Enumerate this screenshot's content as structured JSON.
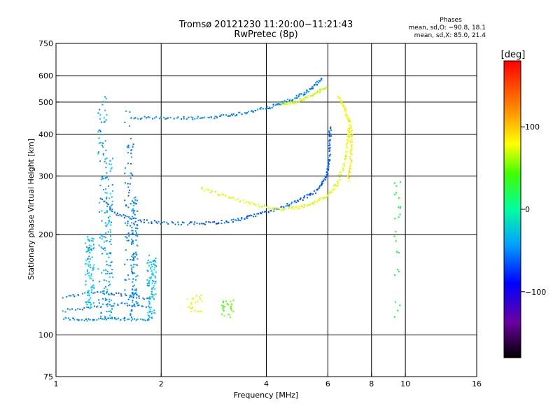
{
  "chart_data": {
    "type": "scatter",
    "title": "Tromsø 20121230 11:20:00−11:21:43",
    "subtitle": "RwPretec (8p)",
    "xlabel": "Frequency [MHz]",
    "ylabel": "Stationary phase Virtual Height [km]",
    "x_scale": "log",
    "y_scale": "log",
    "xlim": [
      1,
      16
    ],
    "ylim": [
      75,
      750
    ],
    "x_ticks": [
      1,
      2,
      4,
      6,
      8,
      10,
      16
    ],
    "x_tick_labels": [
      "1",
      "2",
      "4",
      "6",
      "8",
      "10",
      "16"
    ],
    "y_ticks": [
      75,
      100,
      200,
      300,
      400,
      500,
      600,
      750
    ],
    "y_tick_labels": [
      "75",
      "100",
      "200",
      "300",
      "400",
      "500",
      "600",
      "750"
    ],
    "x_gridlines": [
      2,
      4,
      6,
      8,
      10
    ],
    "y_gridlines": [
      100,
      200,
      300,
      400,
      500,
      600
    ],
    "grid": true,
    "phase_header": "Phases",
    "phase_stats": [
      "mean, sd,O: −90.8, 18.1",
      "mean, sd,X: 85.0, 21.4"
    ],
    "colorbar": {
      "label": "[deg]",
      "range": [
        -180,
        180
      ],
      "ticks": [
        100,
        0,
        -100
      ],
      "tick_labels": [
        "100",
        "0",
        "−100"
      ]
    },
    "traces": [
      {
        "kind": "curve",
        "points": [
          [
            1.05,
            112
          ],
          [
            1.2,
            111
          ],
          [
            1.4,
            112
          ],
          [
            1.6,
            111
          ],
          [
            1.9,
            112
          ]
        ],
        "phase": -95
      },
      {
        "kind": "curve",
        "points": [
          [
            1.05,
            118
          ],
          [
            1.3,
            122
          ],
          [
            1.55,
            124
          ],
          [
            1.85,
            121
          ]
        ],
        "phase": -100
      },
      {
        "kind": "curve",
        "points": [
          [
            1.05,
            130
          ],
          [
            1.3,
            135
          ],
          [
            1.55,
            132
          ],
          [
            1.9,
            128
          ]
        ],
        "phase": -105
      },
      {
        "kind": "vertical_band",
        "x": 1.36,
        "width": 0.03,
        "y_range": [
          112,
          520
        ],
        "phase": -90
      },
      {
        "kind": "vertical_band",
        "x": 1.42,
        "width": 0.025,
        "y_range": [
          112,
          350
        ],
        "phase": -85
      },
      {
        "kind": "vertical_band",
        "x": 1.25,
        "width": 0.03,
        "y_range": [
          120,
          200
        ],
        "phase": -80
      },
      {
        "kind": "vertical_band",
        "x": 1.62,
        "width": 0.03,
        "y_range": [
          112,
          470
        ],
        "phase": -100
      },
      {
        "kind": "vertical_band",
        "x": 1.68,
        "width": 0.02,
        "y_range": [
          120,
          260
        ],
        "phase": -95
      },
      {
        "kind": "vertical_band",
        "x": 1.88,
        "width": 0.03,
        "y_range": [
          112,
          175
        ],
        "phase": -80
      },
      {
        "kind": "curve",
        "points": [
          [
            1.35,
            255
          ],
          [
            1.5,
            230
          ],
          [
            1.7,
            221
          ],
          [
            2.0,
            217
          ],
          [
            2.4,
            216
          ],
          [
            2.8,
            217
          ],
          [
            3.2,
            220
          ],
          [
            3.6,
            226
          ],
          [
            4.0,
            234
          ],
          [
            4.5,
            243
          ],
          [
            5.0,
            254
          ],
          [
            5.5,
            268
          ],
          [
            5.8,
            285
          ],
          [
            6.0,
            310
          ],
          [
            6.05,
            340
          ],
          [
            6.08,
            380
          ],
          [
            6.1,
            420
          ]
        ],
        "phase": -110
      },
      {
        "kind": "curve",
        "points": [
          [
            2.6,
            275
          ],
          [
            3.0,
            262
          ],
          [
            3.5,
            250
          ],
          [
            4.0,
            242
          ],
          [
            4.5,
            238
          ],
          [
            5.0,
            242
          ],
          [
            5.5,
            250
          ],
          [
            6.0,
            262
          ],
          [
            6.4,
            285
          ],
          [
            6.7,
            330
          ],
          [
            6.85,
            380
          ],
          [
            6.9,
            420
          ]
        ],
        "phase": 90
      },
      {
        "kind": "curve",
        "points": [
          [
            1.65,
            450
          ],
          [
            2.0,
            447
          ],
          [
            2.4,
            447
          ],
          [
            2.8,
            450
          ],
          [
            3.2,
            458
          ],
          [
            3.6,
            468
          ],
          [
            4.0,
            480
          ],
          [
            4.4,
            495
          ],
          [
            4.8,
            512
          ],
          [
            5.2,
            535
          ],
          [
            5.5,
            560
          ],
          [
            5.8,
            590
          ]
        ],
        "phase": -100
      },
      {
        "kind": "curve",
        "points": [
          [
            4.4,
            490
          ],
          [
            4.8,
            500
          ],
          [
            5.2,
            515
          ],
          [
            5.6,
            535
          ],
          [
            6.0,
            555
          ]
        ],
        "phase": 80
      },
      {
        "kind": "curve",
        "points": [
          [
            6.45,
            520
          ],
          [
            6.7,
            480
          ],
          [
            6.9,
            440
          ],
          [
            7.0,
            400
          ],
          [
            7.0,
            360
          ],
          [
            6.95,
            320
          ],
          [
            6.85,
            290
          ]
        ],
        "phase": 100
      },
      {
        "kind": "cluster",
        "x": 2.5,
        "y": 125,
        "spread": [
          0.12,
          8
        ],
        "phase": 95
      },
      {
        "kind": "cluster",
        "x": 3.1,
        "y": 120,
        "spread": [
          0.12,
          8
        ],
        "phase": 45
      },
      {
        "kind": "cluster",
        "x": 9.5,
        "y": 200,
        "spread": [
          0.2,
          90
        ],
        "phase": 10
      }
    ]
  }
}
